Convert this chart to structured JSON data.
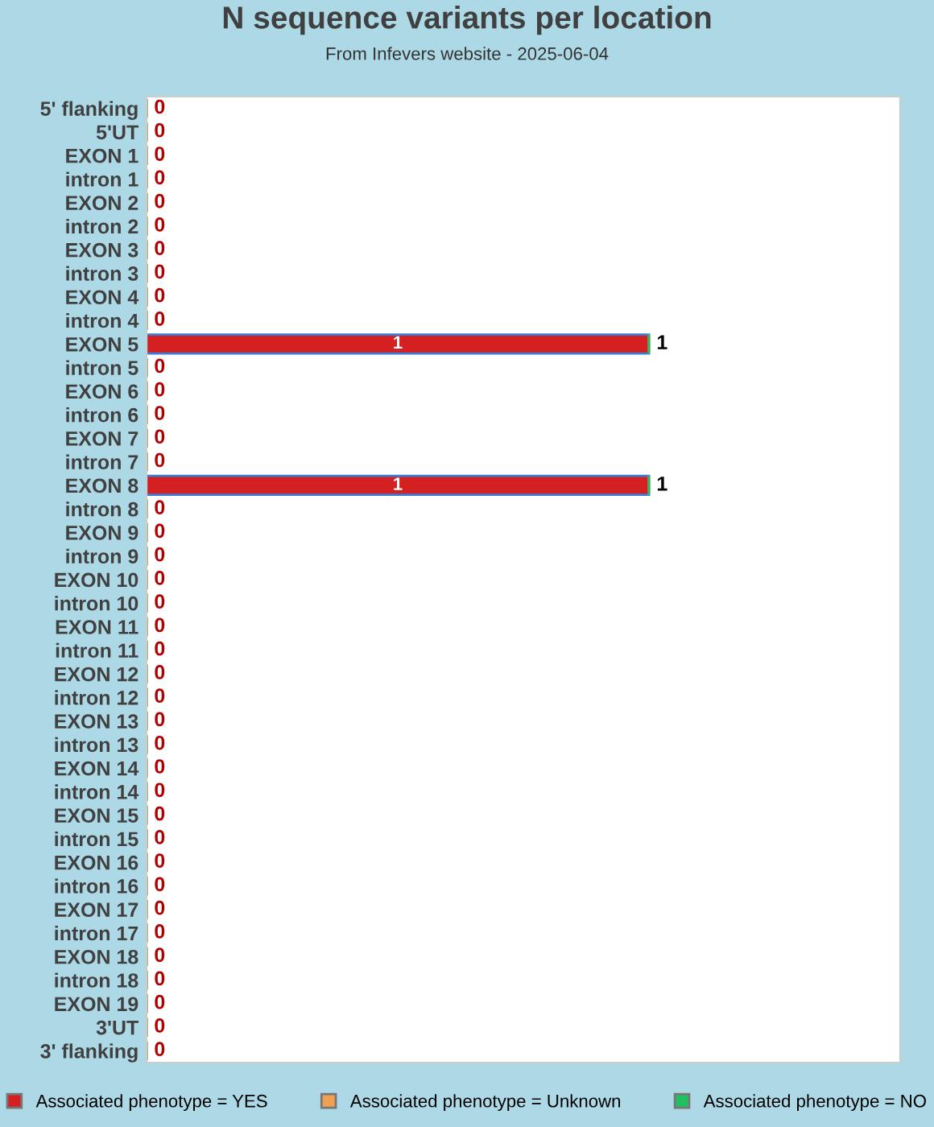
{
  "chart_data": {
    "type": "bar",
    "orientation": "horizontal",
    "stacked": true,
    "tick_labels": "y",
    "title": "N sequence variants per location",
    "subtitle": "From Infevers website - 2025-06-04",
    "categories": [
      "5' flanking",
      "5'UT",
      "EXON 1",
      "intron 1",
      "EXON 2",
      "intron 2",
      "EXON 3",
      "intron 3",
      "EXON 4",
      "intron 4",
      "EXON 5",
      "intron 5",
      "EXON 6",
      "intron 6",
      "EXON 7",
      "intron 7",
      "EXON 8",
      "intron 8",
      "EXON 9",
      "intron 9",
      "EXON 10",
      "intron 10",
      "EXON 11",
      "intron 11",
      "EXON 12",
      "intron 12",
      "EXON 13",
      "intron 13",
      "EXON 14",
      "intron 14",
      "EXON 15",
      "intron 15",
      "EXON 16",
      "intron 16",
      "EXON 17",
      "intron 17",
      "EXON 18",
      "intron 18",
      "EXON 19",
      "3'UT",
      "3' flanking"
    ],
    "series": [
      {
        "name": "Associated phenotype = YES",
        "color": "#d42020",
        "values": [
          0,
          0,
          0,
          0,
          0,
          0,
          0,
          0,
          0,
          0,
          1,
          0,
          0,
          0,
          0,
          0,
          1,
          0,
          0,
          0,
          0,
          0,
          0,
          0,
          0,
          0,
          0,
          0,
          0,
          0,
          0,
          0,
          0,
          0,
          0,
          0,
          0,
          0,
          0,
          0,
          0
        ],
        "value_labels": [
          null,
          null,
          null,
          null,
          null,
          null,
          null,
          null,
          null,
          null,
          "1",
          null,
          null,
          null,
          null,
          null,
          "1",
          null,
          null,
          null,
          null,
          null,
          null,
          null,
          null,
          null,
          null,
          null,
          null,
          null,
          null,
          null,
          null,
          null,
          null,
          null,
          null,
          null,
          null,
          null,
          null
        ]
      },
      {
        "name": "Associated phenotype = Unknown",
        "color": "#f0a050",
        "values": [
          0,
          0,
          0,
          0,
          0,
          0,
          0,
          0,
          0,
          0,
          0,
          0,
          0,
          0,
          0,
          0,
          0,
          0,
          0,
          0,
          0,
          0,
          0,
          0,
          0,
          0,
          0,
          0,
          0,
          0,
          0,
          0,
          0,
          0,
          0,
          0,
          0,
          0,
          0,
          0,
          0
        ]
      },
      {
        "name": "Associated phenotype = NO",
        "color": "#20c060",
        "values": [
          0,
          0,
          0,
          0,
          0,
          0,
          0,
          0,
          0,
          0,
          0,
          0,
          0,
          0,
          0,
          0,
          0,
          0,
          0,
          0,
          0,
          0,
          0,
          0,
          0,
          0,
          0,
          0,
          0,
          0,
          0,
          0,
          0,
          0,
          0,
          0,
          0,
          0,
          0,
          0,
          0
        ]
      }
    ],
    "totals": [
      "0",
      "0",
      "0",
      "0",
      "0",
      "0",
      "0",
      "0",
      "0",
      "0",
      "1",
      "0",
      "0",
      "0",
      "0",
      "0",
      "1",
      "0",
      "0",
      "0",
      "0",
      "0",
      "0",
      "0",
      "0",
      "0",
      "0",
      "0",
      "0",
      "0",
      "0",
      "0",
      "0",
      "0",
      "0",
      "0",
      "0",
      "0",
      "0",
      "0",
      "0"
    ],
    "legend": "bottom",
    "grid": false
  }
}
